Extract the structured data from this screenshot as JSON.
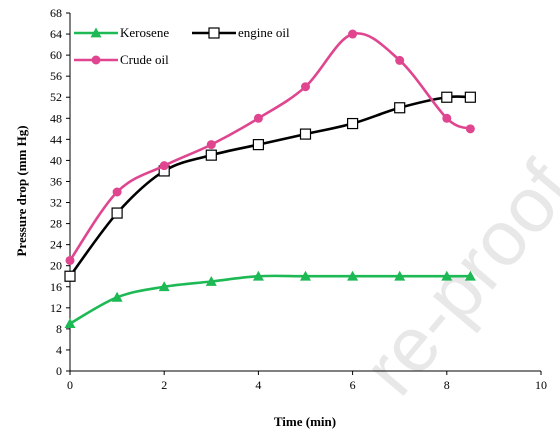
{
  "chart_data": {
    "type": "line",
    "xlabel": "Time (min)",
    "ylabel": "Pressure drop (mm Hg)",
    "xlim": [
      0,
      10
    ],
    "ylim": [
      0,
      68
    ],
    "xticks": [
      0,
      2,
      4,
      6,
      8,
      10
    ],
    "yticks": [
      0,
      4,
      8,
      12,
      16,
      20,
      24,
      28,
      32,
      36,
      40,
      44,
      48,
      52,
      56,
      60,
      64,
      68
    ],
    "grid": false,
    "legend_position": "top-left",
    "series": [
      {
        "name": "Kerosene",
        "color": "#1db954",
        "marker": "triangle",
        "x": [
          0,
          1,
          2,
          3,
          4,
          5,
          6,
          7,
          8,
          8.5
        ],
        "y": [
          9,
          14,
          16,
          17,
          18,
          18,
          18,
          18,
          18,
          18
        ]
      },
      {
        "name": "engine oil",
        "color": "#000000",
        "marker": "square-open",
        "x": [
          0,
          1,
          2,
          3,
          4,
          5,
          6,
          7,
          8,
          8.5
        ],
        "y": [
          18,
          30,
          38,
          41,
          43,
          45,
          47,
          50,
          52,
          52
        ]
      },
      {
        "name": "Crude oil",
        "color": "#e0458f",
        "marker": "circle",
        "x": [
          0,
          1,
          2,
          3,
          4,
          5,
          6,
          7,
          8,
          8.5
        ],
        "y": [
          21,
          34,
          39,
          43,
          48,
          54,
          64,
          59,
          48,
          46
        ]
      }
    ]
  },
  "watermark": "re-proof"
}
